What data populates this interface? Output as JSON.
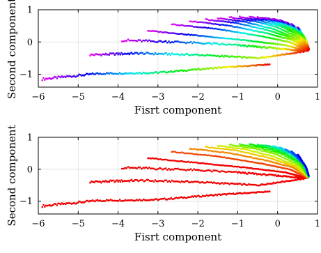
{
  "chart_data": [
    {
      "type": "scatter",
      "panel": "top",
      "coloring": "hue varies along each curve: magenta/blue at the left end, through cyan, green, yellow, orange to red at the right end",
      "xlabel": "Fisrt component",
      "ylabel": "Second component",
      "xlim": [
        -6,
        1
      ],
      "ylim": [
        -1.4,
        1
      ],
      "xticks": [
        -6,
        -5,
        -4,
        -3,
        -2,
        -1,
        0,
        1
      ],
      "yticks": [
        -1,
        0,
        1
      ],
      "xtick_labels": [
        "−6",
        "−5",
        "−4",
        "−3",
        "−2",
        "−1",
        "0",
        "1"
      ],
      "ytick_labels": [
        "−1",
        "0",
        "1"
      ],
      "grid": true,
      "legend": "none",
      "series": [
        {
          "x": [
            -5.9,
            -4.5,
            -3.0,
            -1.5,
            -0.2
          ],
          "y": [
            -1.15,
            -0.98,
            -0.95,
            -0.8,
            -0.7
          ]
        },
        {
          "x": [
            -4.7,
            -3.5,
            -2.0,
            -0.5,
            0.65
          ],
          "y": [
            -0.4,
            -0.35,
            -0.4,
            -0.5,
            -0.3
          ]
        },
        {
          "x": [
            -3.9,
            -2.5,
            -1.0,
            0.0,
            0.72
          ],
          "y": [
            0.05,
            0.0,
            -0.1,
            -0.2,
            -0.28
          ]
        },
        {
          "x": [
            -3.25,
            -2.0,
            -0.8,
            0.2,
            0.75
          ],
          "y": [
            0.35,
            0.2,
            0.05,
            -0.1,
            -0.28
          ]
        },
        {
          "x": [
            -2.65,
            -1.5,
            -0.5,
            0.3,
            0.76
          ],
          "y": [
            0.55,
            0.4,
            0.2,
            0.0,
            -0.27
          ]
        },
        {
          "x": [
            -2.2,
            -1.2,
            -0.3,
            0.4,
            0.76
          ],
          "y": [
            0.65,
            0.5,
            0.28,
            0.05,
            -0.26
          ]
        },
        {
          "x": [
            -1.8,
            -1.0,
            -0.2,
            0.45,
            0.77
          ],
          "y": [
            0.7,
            0.58,
            0.35,
            0.08,
            -0.25
          ]
        },
        {
          "x": [
            -1.5,
            -0.8,
            -0.1,
            0.5,
            0.77
          ],
          "y": [
            0.74,
            0.62,
            0.4,
            0.1,
            -0.25
          ]
        },
        {
          "x": [
            -1.2,
            -0.6,
            0.0,
            0.55,
            0.78
          ],
          "y": [
            0.77,
            0.65,
            0.45,
            0.12,
            -0.24
          ]
        },
        {
          "x": [
            -0.95,
            -0.45,
            0.1,
            0.58,
            0.78
          ],
          "y": [
            0.78,
            0.67,
            0.48,
            0.15,
            -0.24
          ]
        },
        {
          "x": [
            -0.7,
            -0.3,
            0.15,
            0.6,
            0.78
          ],
          "y": [
            0.78,
            0.68,
            0.5,
            0.18,
            -0.23
          ]
        },
        {
          "x": [
            -0.5,
            -0.15,
            0.2,
            0.62,
            0.78
          ],
          "y": [
            0.77,
            0.68,
            0.52,
            0.2,
            -0.23
          ]
        },
        {
          "x": [
            -0.3,
            0.0,
            0.3,
            0.65,
            0.78
          ],
          "y": [
            0.75,
            0.66,
            0.5,
            0.2,
            -0.22
          ]
        },
        {
          "x": [
            -0.12,
            0.1,
            0.35,
            0.66,
            0.78
          ],
          "y": [
            0.72,
            0.64,
            0.48,
            0.18,
            -0.22
          ]
        },
        {
          "x": [
            0.05,
            0.2,
            0.4,
            0.67,
            0.78
          ],
          "y": [
            0.68,
            0.6,
            0.45,
            0.15,
            -0.21
          ]
        },
        {
          "x": [
            0.2,
            0.3,
            0.45,
            0.68,
            0.78
          ],
          "y": [
            0.62,
            0.55,
            0.4,
            0.12,
            -0.21
          ]
        },
        {
          "x": [
            0.35,
            0.42,
            0.52,
            0.7,
            0.78
          ],
          "y": [
            0.55,
            0.48,
            0.35,
            0.1,
            -0.2
          ]
        },
        {
          "x": [
            0.5,
            0.55,
            0.6,
            0.72,
            0.78
          ],
          "y": [
            0.45,
            0.38,
            0.28,
            0.05,
            -0.2
          ]
        }
      ]
    },
    {
      "type": "scatter",
      "panel": "bottom",
      "coloring": "each curve a single colour from its starting point: outermost curves red/orange, inner curves through yellow, green and cyan to blue",
      "xlabel": "Fisrt component",
      "ylabel": "Second component",
      "xlim": [
        -6,
        1
      ],
      "ylim": [
        -1.4,
        1
      ],
      "xticks": [
        -6,
        -5,
        -4,
        -3,
        -2,
        -1,
        0,
        1
      ],
      "yticks": [
        -1,
        0,
        1
      ],
      "xtick_labels": [
        "−6",
        "−5",
        "−4",
        "−3",
        "−2",
        "−1",
        "0",
        "1"
      ],
      "ytick_labels": [
        "−1",
        "0",
        "1"
      ],
      "grid": true,
      "legend": "none",
      "series": [
        {
          "x": [
            -5.9,
            -4.5,
            -3.0,
            -1.5,
            -0.2
          ],
          "y": [
            -1.15,
            -0.98,
            -0.95,
            -0.8,
            -0.7
          ]
        },
        {
          "x": [
            -4.7,
            -3.5,
            -2.0,
            -0.5,
            0.65
          ],
          "y": [
            -0.4,
            -0.35,
            -0.4,
            -0.5,
            -0.3
          ]
        },
        {
          "x": [
            -3.9,
            -2.5,
            -1.0,
            0.0,
            0.72
          ],
          "y": [
            0.05,
            0.0,
            -0.1,
            -0.2,
            -0.28
          ]
        },
        {
          "x": [
            -3.25,
            -2.0,
            -0.8,
            0.2,
            0.75
          ],
          "y": [
            0.35,
            0.2,
            0.05,
            -0.1,
            -0.28
          ]
        },
        {
          "x": [
            -2.65,
            -1.5,
            -0.5,
            0.3,
            0.76
          ],
          "y": [
            0.55,
            0.4,
            0.2,
            0.0,
            -0.27
          ]
        },
        {
          "x": [
            -2.2,
            -1.2,
            -0.3,
            0.4,
            0.76
          ],
          "y": [
            0.65,
            0.5,
            0.28,
            0.05,
            -0.26
          ]
        },
        {
          "x": [
            -1.8,
            -1.0,
            -0.2,
            0.45,
            0.77
          ],
          "y": [
            0.7,
            0.58,
            0.35,
            0.08,
            -0.25
          ]
        },
        {
          "x": [
            -1.5,
            -0.8,
            -0.1,
            0.5,
            0.77
          ],
          "y": [
            0.74,
            0.62,
            0.4,
            0.1,
            -0.25
          ]
        },
        {
          "x": [
            -1.2,
            -0.6,
            0.0,
            0.55,
            0.78
          ],
          "y": [
            0.77,
            0.65,
            0.45,
            0.12,
            -0.24
          ]
        },
        {
          "x": [
            -0.95,
            -0.45,
            0.1,
            0.58,
            0.78
          ],
          "y": [
            0.78,
            0.67,
            0.48,
            0.15,
            -0.24
          ]
        },
        {
          "x": [
            -0.7,
            -0.3,
            0.15,
            0.6,
            0.78
          ],
          "y": [
            0.78,
            0.68,
            0.5,
            0.18,
            -0.23
          ]
        },
        {
          "x": [
            -0.5,
            -0.15,
            0.2,
            0.62,
            0.78
          ],
          "y": [
            0.77,
            0.68,
            0.52,
            0.2,
            -0.23
          ]
        },
        {
          "x": [
            -0.3,
            0.0,
            0.3,
            0.65,
            0.78
          ],
          "y": [
            0.75,
            0.66,
            0.5,
            0.2,
            -0.22
          ]
        },
        {
          "x": [
            -0.12,
            0.1,
            0.35,
            0.66,
            0.78
          ],
          "y": [
            0.72,
            0.64,
            0.48,
            0.18,
            -0.22
          ]
        },
        {
          "x": [
            0.05,
            0.2,
            0.4,
            0.67,
            0.78
          ],
          "y": [
            0.68,
            0.6,
            0.45,
            0.15,
            -0.21
          ]
        },
        {
          "x": [
            0.2,
            0.3,
            0.45,
            0.68,
            0.78
          ],
          "y": [
            0.62,
            0.55,
            0.4,
            0.12,
            -0.21
          ]
        },
        {
          "x": [
            0.35,
            0.42,
            0.52,
            0.7,
            0.78
          ],
          "y": [
            0.55,
            0.48,
            0.35,
            0.1,
            -0.2
          ]
        },
        {
          "x": [
            0.5,
            0.55,
            0.6,
            0.72,
            0.78
          ],
          "y": [
            0.45,
            0.38,
            0.28,
            0.05,
            -0.2
          ]
        }
      ]
    }
  ]
}
